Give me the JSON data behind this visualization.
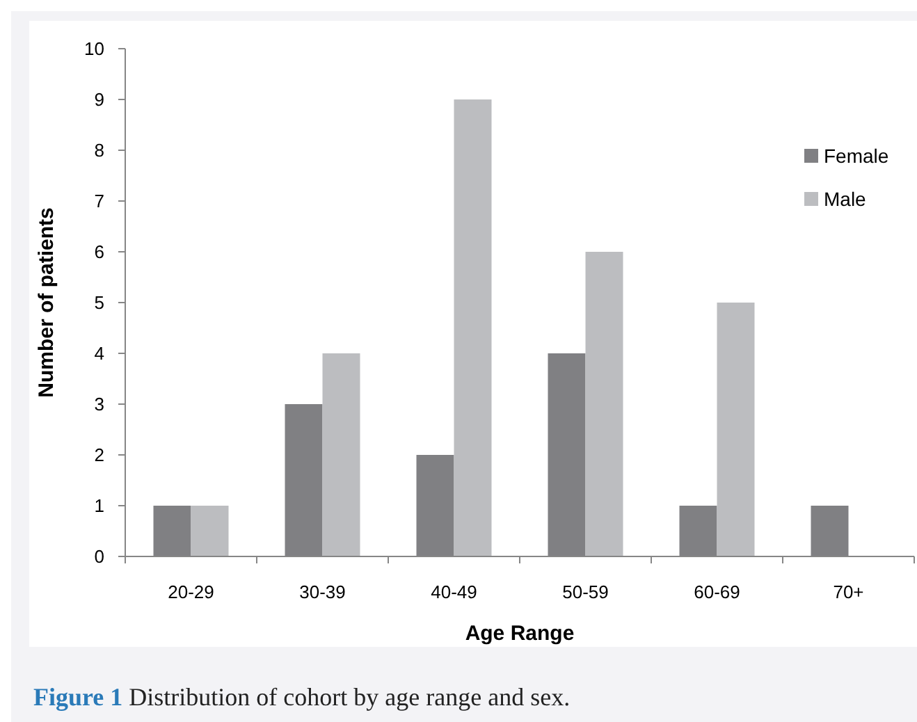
{
  "chart_data": {
    "type": "bar",
    "xlabel": "Age Range",
    "ylabel": "Number of patients",
    "categories": [
      "20-29",
      "30-39",
      "40-49",
      "50-59",
      "60-69",
      "70+"
    ],
    "series": [
      {
        "name": "Female",
        "color": "#808083",
        "values": [
          1,
          3,
          2,
          4,
          1,
          1
        ]
      },
      {
        "name": "Male",
        "color": "#bcbdc0",
        "values": [
          1,
          4,
          9,
          6,
          5,
          0
        ]
      }
    ],
    "ylim": [
      0,
      10
    ],
    "yticks": [
      0,
      1,
      2,
      3,
      4,
      5,
      6,
      7,
      8,
      9,
      10
    ],
    "grid": false,
    "legend": "right",
    "annotations": [
      "Figure 1",
      "Distribution of cohort by age range and sex."
    ]
  }
}
